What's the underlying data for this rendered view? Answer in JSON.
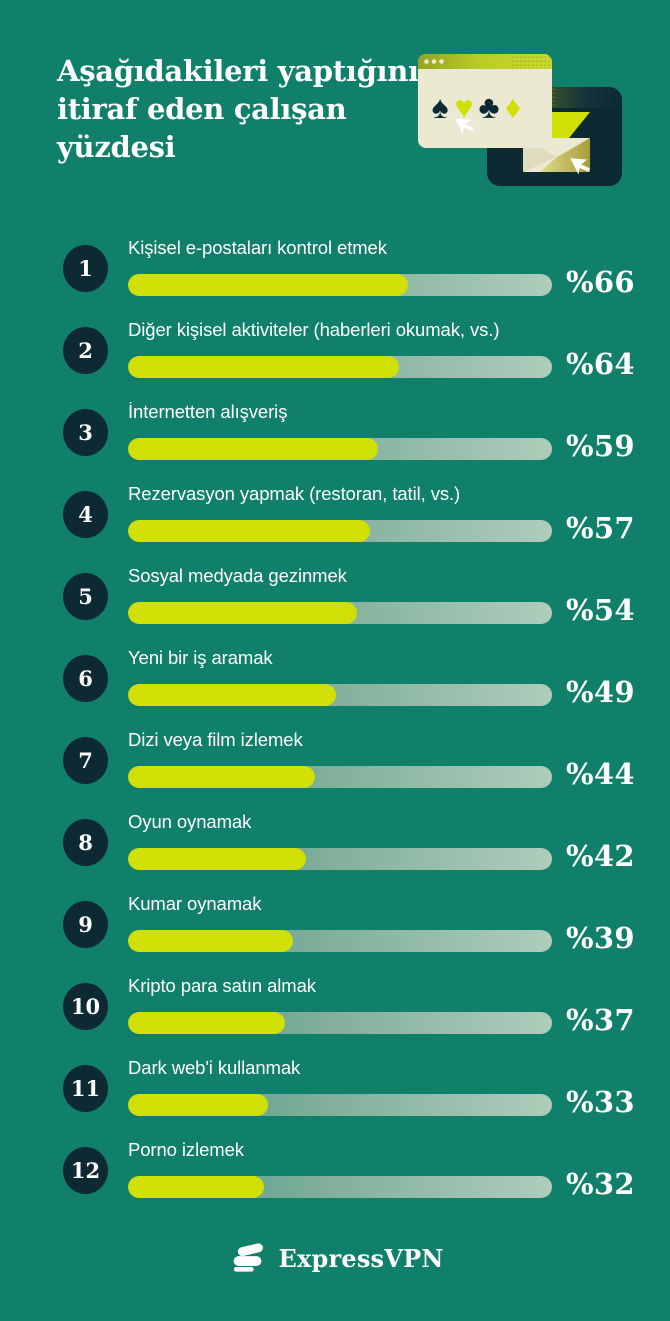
{
  "theme": {
    "background": "#11806a",
    "accent": "#d0e004",
    "dark": "#0d2a32",
    "cream": "#ece9d3",
    "track_gradient_start": "#4e9a85",
    "track_gradient_end": "#aecdbb",
    "text": "#ffffff"
  },
  "header": {
    "title": "Aşağıdakileri yaptığını\nitiraf eden çalışan\nyüzdesi"
  },
  "illustration": {
    "icons": [
      "browser-window",
      "spade-icon",
      "heart-icon",
      "club-icon",
      "diamond-icon",
      "cursor-icon",
      "dark-window",
      "envelope-icon",
      "cursor-icon"
    ]
  },
  "chart_data": {
    "type": "bar",
    "orientation": "horizontal",
    "title": "Aşağıdakileri yaptığını itiraf eden çalışan yüzdesi",
    "xlim": [
      0,
      100
    ],
    "grid": false,
    "legend": false,
    "value_prefix": "%",
    "ranks": [
      "1",
      "2",
      "3",
      "4",
      "5",
      "6",
      "7",
      "8",
      "9",
      "10",
      "11",
      "12"
    ],
    "categories": [
      "Kişisel e-postaları kontrol etmek",
      "Diğer kişisel aktiviteler (haberleri okumak, vs.)",
      "İnternetten alışveriş",
      "Rezervasyon yapmak (restoran, tatil, vs.)",
      "Sosyal medyada gezinmek",
      "Yeni bir iş aramak",
      "Dizi veya film izlemek",
      "Oyun oynamak",
      "Kumar oynamak",
      "Kripto para satın almak",
      "Dark web'i kullanmak",
      "Porno izlemek"
    ],
    "values": [
      66,
      64,
      59,
      57,
      54,
      49,
      44,
      42,
      39,
      37,
      33,
      32
    ],
    "display_values": [
      "%66",
      "%64",
      "%59",
      "%57",
      "%54",
      "%49",
      "%44",
      "%42",
      "%39",
      "%37",
      "%33",
      "%32"
    ]
  },
  "footer": {
    "brand": "ExpressVPN"
  }
}
